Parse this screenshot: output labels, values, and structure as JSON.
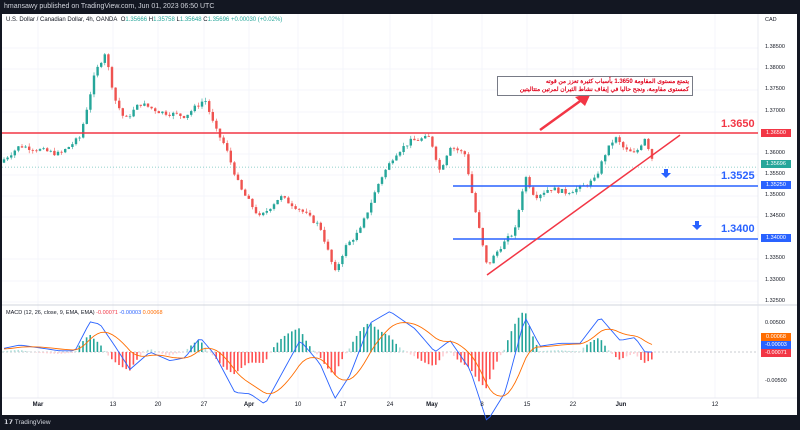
{
  "header": {
    "publisher": "hmansawy published on TradingView.com, Jun 01, 2023 06:50 UTC"
  },
  "legend": {
    "symbol": "U.S. Dollar / Canadian Dollar, 4h, OANDA",
    "o_label": "O",
    "o": "1.35666",
    "h_label": "H",
    "h": "1.35758",
    "l_label": "L",
    "l": "1.35648",
    "c_label": "C",
    "c": "1.35696",
    "change": "+0.00030 (+0.02%)"
  },
  "macd_legend": {
    "label": "MACD (12, 26, close, 9, EMA, EMA)",
    "hist": "-0.00071",
    "macd": "-0.00003",
    "signal": "0.00068"
  },
  "annotation": {
    "line1": "يتمتع مستوى المقاومة 1.3650 بأسباب كثيرة تعزز من قوته",
    "line2": "كمستوى مقاومة، ونجح حاليا في إيقاف نشاط الثيران لمرتين متتاليتين"
  },
  "levels": [
    {
      "label": "1.3650",
      "tag": "1.36500",
      "color": "#f23645"
    },
    {
      "label": "1.3525",
      "tag": "1.35250",
      "color": "#2962ff"
    },
    {
      "label": "1.3400",
      "tag": "1.34000",
      "color": "#2962ff"
    }
  ],
  "current_price": {
    "tag": "1.35696",
    "color": "#26a69a"
  },
  "price_axis": {
    "currency": "CAD",
    "ticks": [
      "1.38500",
      "1.38000",
      "1.37500",
      "1.37000",
      "1.36000",
      "1.35500",
      "1.35000",
      "1.34500",
      "1.33500",
      "1.33000",
      "1.32500"
    ]
  },
  "macd_axis": {
    "ticks": [
      "0.00500",
      "-0.00500"
    ],
    "tags": [
      {
        "v": "0.00068",
        "color": "#ff6d00"
      },
      {
        "v": "-0.00003",
        "color": "#2962ff"
      },
      {
        "v": "-0.00071",
        "color": "#f23645"
      }
    ]
  },
  "time_axis": [
    "Mar",
    "13",
    "20",
    "27",
    "Apr",
    "10",
    "17",
    "24",
    "May",
    "8",
    "15",
    "22",
    "Jun",
    "12"
  ],
  "footer": {
    "brand": "TradingView"
  },
  "chart_data": {
    "type": "candlestick",
    "symbol": "USDCAD 4h",
    "ylim": [
      1.328,
      1.3875
    ],
    "price_path": [
      [
        0,
        1.358
      ],
      [
        20,
        1.362
      ],
      [
        40,
        1.361
      ],
      [
        60,
        1.36
      ],
      [
        80,
        1.364
      ],
      [
        95,
        1.379
      ],
      [
        105,
        1.384
      ],
      [
        115,
        1.373
      ],
      [
        125,
        1.368
      ],
      [
        140,
        1.372
      ],
      [
        160,
        1.37
      ],
      [
        185,
        1.369
      ],
      [
        205,
        1.373
      ],
      [
        215,
        1.366
      ],
      [
        225,
        1.362
      ],
      [
        240,
        1.352
      ],
      [
        260,
        1.345
      ],
      [
        280,
        1.35
      ],
      [
        300,
        1.347
      ],
      [
        320,
        1.343
      ],
      [
        335,
        1.332
      ],
      [
        345,
        1.338
      ],
      [
        360,
        1.342
      ],
      [
        380,
        1.354
      ],
      [
        395,
        1.36
      ],
      [
        410,
        1.363
      ],
      [
        430,
        1.364
      ],
      [
        440,
        1.356
      ],
      [
        450,
        1.362
      ],
      [
        465,
        1.36
      ],
      [
        475,
        1.347
      ],
      [
        487,
        1.3335
      ],
      [
        500,
        1.338
      ],
      [
        515,
        1.342
      ],
      [
        525,
        1.355
      ],
      [
        535,
        1.35
      ],
      [
        550,
        1.352
      ],
      [
        565,
        1.351
      ],
      [
        580,
        1.352
      ],
      [
        595,
        1.354
      ],
      [
        605,
        1.36
      ],
      [
        615,
        1.364
      ],
      [
        625,
        1.361
      ],
      [
        635,
        1.36
      ],
      [
        645,
        1.364
      ],
      [
        655,
        1.357
      ]
    ],
    "resistance": 1.365,
    "supports": [
      1.3525,
      1.34
    ],
    "trendline": [
      [
        487,
        1.3315
      ],
      [
        680,
        1.3645
      ]
    ],
    "macd_path": [
      [
        0,
        0.0005
      ],
      [
        20,
        0.0012
      ],
      [
        60,
        0.0002
      ],
      [
        75,
        0.0002
      ],
      [
        90,
        0.0052
      ],
      [
        100,
        0.0048
      ],
      [
        115,
        0.001
      ],
      [
        130,
        -0.003
      ],
      [
        150,
        0.0
      ],
      [
        170,
        -0.0015
      ],
      [
        185,
        -0.001
      ],
      [
        200,
        0.0025
      ],
      [
        215,
        -0.0005
      ],
      [
        235,
        -0.007
      ],
      [
        250,
        -0.0072
      ],
      [
        265,
        -0.009
      ],
      [
        300,
        0.002
      ],
      [
        320,
        -0.002
      ],
      [
        335,
        -0.008
      ],
      [
        350,
        -0.004
      ],
      [
        370,
        0.005
      ],
      [
        390,
        0.007
      ],
      [
        415,
        0.004
      ],
      [
        435,
        0.0
      ],
      [
        450,
        0.002
      ],
      [
        470,
        -0.003
      ],
      [
        487,
        -0.012
      ],
      [
        505,
        -0.007
      ],
      [
        525,
        0.006
      ],
      [
        540,
        0.001
      ],
      [
        560,
        0.0015
      ],
      [
        580,
        0.0015
      ],
      [
        600,
        0.006
      ],
      [
        620,
        0.002
      ],
      [
        635,
        0.0025
      ],
      [
        645,
        0.0
      ]
    ]
  }
}
